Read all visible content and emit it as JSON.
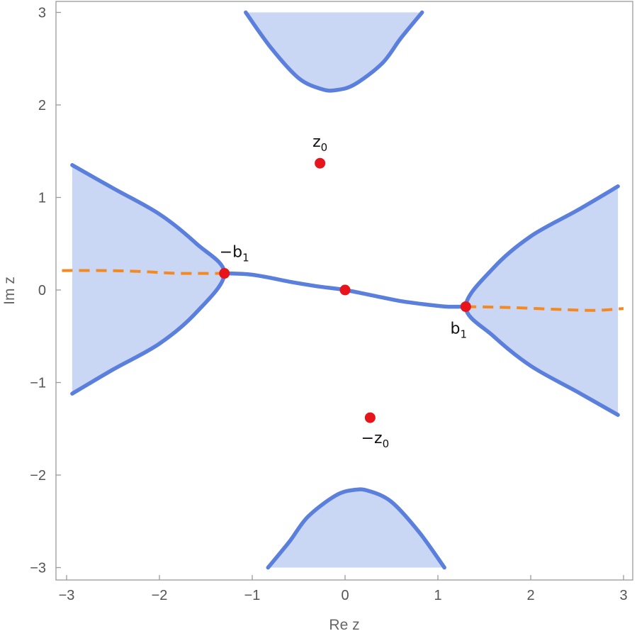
{
  "chart_data": {
    "type": "line",
    "xlabel": "Re z",
    "ylabel": "Im z",
    "xlim": [
      -3,
      3
    ],
    "ylim": [
      -3,
      3
    ],
    "x_ticks": [
      "−3",
      "−2",
      "−1",
      "0",
      "1",
      "2",
      "3"
    ],
    "y_ticks": [
      "−3",
      "−2",
      "−1",
      "0",
      "1",
      "2",
      "3"
    ],
    "x_tick_values": [
      -3,
      -2,
      -1,
      0,
      1,
      2,
      3
    ],
    "y_tick_values": [
      -3,
      -2,
      -1,
      0,
      1,
      2,
      3
    ],
    "grid": false,
    "colors": {
      "region_fill": "#c9d6f4",
      "boundary": "#5b7fdc",
      "branch_cut": "#f5891f",
      "points": "#e8141b"
    },
    "regions": [
      {
        "id": "top",
        "points": [
          [
            -1.07,
            3.0
          ],
          [
            -0.8,
            2.62
          ],
          [
            -0.5,
            2.29
          ],
          [
            -0.25,
            2.17
          ],
          [
            -0.1,
            2.16
          ],
          [
            0.1,
            2.22
          ],
          [
            0.4,
            2.45
          ],
          [
            0.6,
            2.72
          ],
          [
            0.83,
            3.0
          ]
        ]
      },
      {
        "id": "bottom",
        "points": [
          [
            -0.83,
            -3.0
          ],
          [
            -0.6,
            -2.72
          ],
          [
            -0.4,
            -2.45
          ],
          [
            -0.1,
            -2.22
          ],
          [
            0.1,
            -2.16
          ],
          [
            0.25,
            -2.17
          ],
          [
            0.5,
            -2.29
          ],
          [
            0.8,
            -2.62
          ],
          [
            1.07,
            -3.0
          ]
        ]
      },
      {
        "id": "left",
        "points": [
          [
            -2.94,
            1.35
          ],
          [
            -2.5,
            1.1
          ],
          [
            -2.0,
            0.82
          ],
          [
            -1.6,
            0.5
          ],
          [
            -1.3,
            0.18
          ],
          [
            -1.6,
            -0.24
          ],
          [
            -2.0,
            -0.58
          ],
          [
            -2.5,
            -0.86
          ],
          [
            -2.94,
            -1.12
          ]
        ]
      },
      {
        "id": "right",
        "points": [
          [
            2.94,
            1.12
          ],
          [
            2.5,
            0.86
          ],
          [
            2.0,
            0.58
          ],
          [
            1.6,
            0.24
          ],
          [
            1.3,
            -0.18
          ],
          [
            1.6,
            -0.5
          ],
          [
            2.0,
            -0.82
          ],
          [
            2.5,
            -1.1
          ],
          [
            2.94,
            -1.35
          ]
        ]
      }
    ],
    "center_curve": [
      [
        -1.3,
        0.18
      ],
      [
        -1.05,
        0.17
      ],
      [
        -0.85,
        0.14
      ],
      [
        -0.6,
        0.09
      ],
      [
        -0.3,
        0.04
      ],
      [
        0.0,
        0.0
      ],
      [
        0.3,
        -0.06
      ],
      [
        0.6,
        -0.12
      ],
      [
        0.9,
        -0.16
      ],
      [
        1.1,
        -0.18
      ],
      [
        1.3,
        -0.18
      ]
    ],
    "branch_cuts": [
      [
        [
          -3.05,
          0.21
        ],
        [
          -2.6,
          0.21
        ],
        [
          -2.2,
          0.2
        ],
        [
          -1.8,
          0.18
        ],
        [
          -1.3,
          0.18
        ]
      ],
      [
        [
          1.3,
          -0.18
        ],
        [
          1.8,
          -0.19
        ],
        [
          2.3,
          -0.21
        ],
        [
          2.7,
          -0.22
        ],
        [
          3.0,
          -0.2
        ]
      ]
    ],
    "points": [
      {
        "x": -0.27,
        "y": 1.37,
        "label": "z",
        "sub": "0",
        "label_pos": "above"
      },
      {
        "x": 0.27,
        "y": -1.38,
        "label": "−z",
        "sub": "0",
        "label_pos": "below"
      },
      {
        "x": -1.3,
        "y": 0.18,
        "label": "−b",
        "sub": "1",
        "label_pos": "above"
      },
      {
        "x": 1.3,
        "y": -0.18,
        "label": "b",
        "sub": "1",
        "label_pos": "below-left"
      },
      {
        "x": 0.0,
        "y": 0.0,
        "label": "",
        "sub": "",
        "label_pos": "none"
      }
    ]
  }
}
